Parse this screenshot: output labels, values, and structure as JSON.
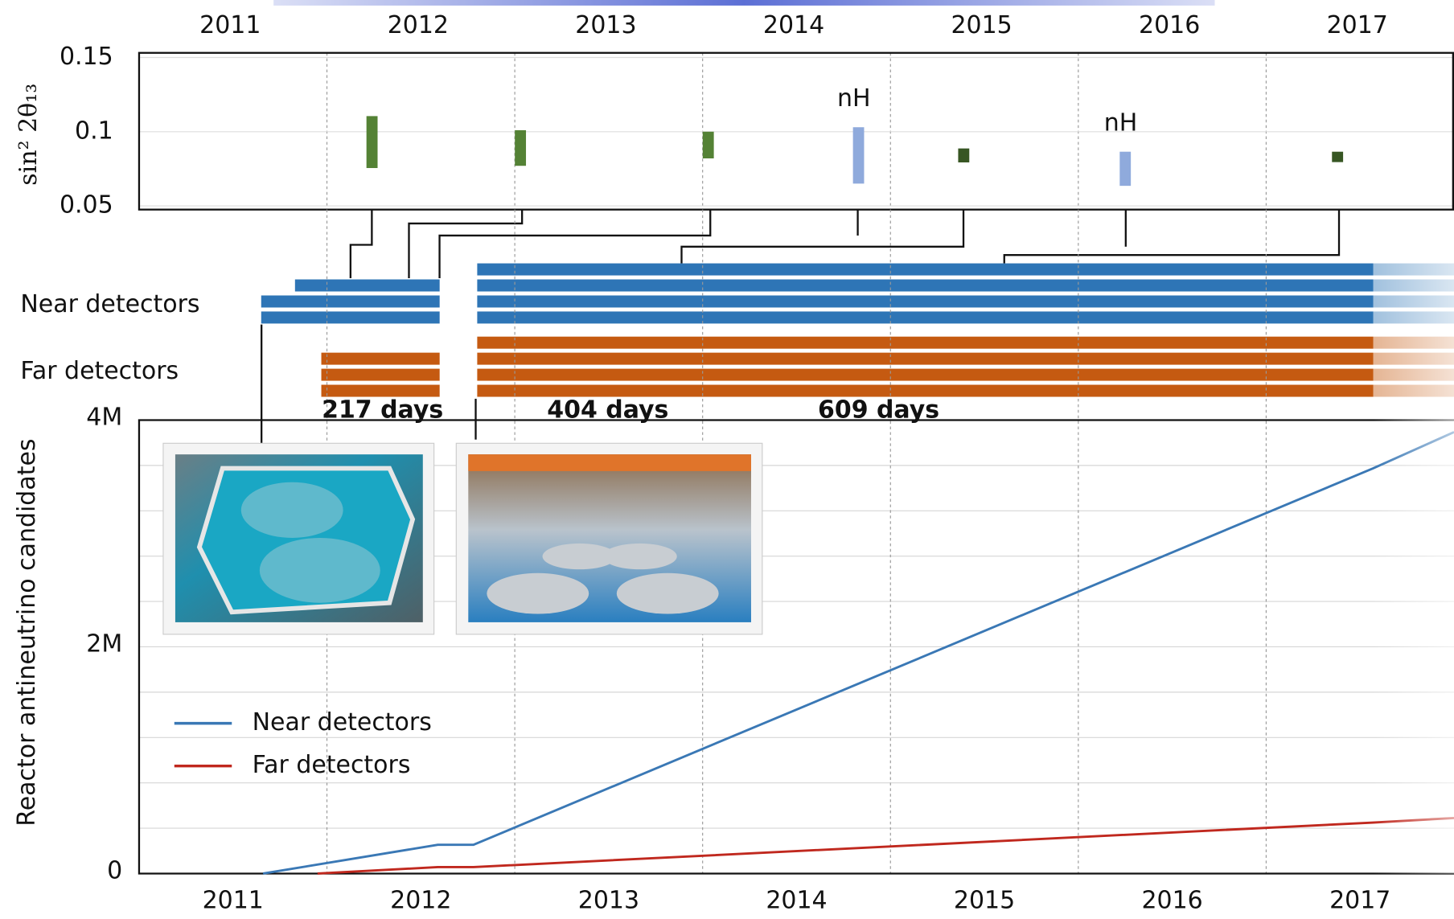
{
  "chart_data": [
    {
      "type": "interval",
      "ylabel": "sin² 2θ₁₃",
      "xlim": [
        2011,
        2018
      ],
      "xticks": [
        {
          "value": 2011.5,
          "label": "2011"
        },
        {
          "value": 2012.5,
          "label": "2012"
        },
        {
          "value": 2013.5,
          "label": "2013"
        },
        {
          "value": 2014.5,
          "label": "2014"
        },
        {
          "value": 2015.5,
          "label": "2015"
        },
        {
          "value": 2016.5,
          "label": "2016"
        },
        {
          "value": 2017.5,
          "label": "2017"
        }
      ],
      "xgrid": [
        2012,
        2013,
        2014,
        2015,
        2016,
        2017
      ],
      "ylim": [
        0.05,
        0.15
      ],
      "yticks": [
        0.05,
        0.1,
        0.15
      ],
      "x": [
        2012.24,
        2013.03,
        2014.03,
        2014.83,
        2015.39,
        2016.25,
        2017.38
      ],
      "values": [
        0.093,
        0.089,
        0.091,
        0.084,
        0.084,
        0.075,
        0.083
      ],
      "errors": [
        0.0175,
        0.012,
        0.009,
        0.019,
        0.0047,
        0.0115,
        0.0035
      ],
      "colors": [
        "#548235",
        "#548235",
        "#548235",
        "#8faadc",
        "#375623",
        "#8faadc",
        "#375623"
      ],
      "annotations": [
        null,
        null,
        null,
        "nH",
        null,
        "nH",
        null
      ]
    },
    {
      "type": "timeline",
      "xlim": [
        2011,
        2018
      ],
      "series": [
        {
          "name": "Near detectors",
          "color": "#2e75b6",
          "detectors": [
            [
              [
                2012.8,
                2017.57
              ]
            ],
            [
              [
                2011.83,
                2012.6
              ],
              [
                2012.8,
                2017.57
              ]
            ],
            [
              [
                2011.65,
                2012.6
              ],
              [
                2012.8,
                2017.57
              ]
            ],
            [
              [
                2011.65,
                2012.6
              ],
              [
                2012.8,
                2017.57
              ]
            ]
          ]
        },
        {
          "name": "Far detectors",
          "color": "#c55a11",
          "detectors": [
            [
              [
                2012.8,
                2017.57
              ]
            ],
            [
              [
                2011.97,
                2012.6
              ],
              [
                2012.8,
                2017.57
              ]
            ],
            [
              [
                2011.97,
                2012.6
              ],
              [
                2012.8,
                2017.57
              ]
            ],
            [
              [
                2011.97,
                2012.6
              ],
              [
                2012.8,
                2017.57
              ]
            ]
          ]
        }
      ],
      "annotations": [
        "217 days",
        "404 days",
        "609 days"
      ]
    },
    {
      "type": "line",
      "ylabel": "Reactor antineutrino candidates",
      "xlim": [
        2011,
        2018
      ],
      "xticks": [
        {
          "value": 2011.5,
          "label": "2011"
        },
        {
          "value": 2012.5,
          "label": "2012"
        },
        {
          "value": 2013.5,
          "label": "2013"
        },
        {
          "value": 2014.5,
          "label": "2014"
        },
        {
          "value": 2015.5,
          "label": "2015"
        },
        {
          "value": 2016.5,
          "label": "2016"
        },
        {
          "value": 2017.5,
          "label": "2017"
        }
      ],
      "xgrid": [
        2012,
        2013,
        2014,
        2015,
        2016,
        2017
      ],
      "ylim": [
        0,
        4000000
      ],
      "yticks": [
        0,
        {
          "value": 2000000,
          "label": "2M"
        },
        {
          "value": 4000000,
          "label": "4M"
        }
      ],
      "ygrid": [
        400000,
        800000,
        1200000,
        1600000,
        2400000,
        2800000,
        3200000,
        3600000
      ],
      "series": [
        {
          "name": "Near detectors",
          "color": "#3a78b5",
          "x": [
            2011.66,
            2012.59,
            2012.78,
            2017.57,
            2018.0
          ],
          "values": [
            0,
            254000,
            254000,
            3575000,
            3894000
          ]
        },
        {
          "name": "Far detectors",
          "color": "#c0281e",
          "x": [
            2011.95,
            2012.59,
            2012.78,
            2017.57,
            2018.0
          ],
          "values": [
            0,
            57000,
            57000,
            450000,
            490000
          ]
        }
      ],
      "legend": "lower left"
    }
  ]
}
